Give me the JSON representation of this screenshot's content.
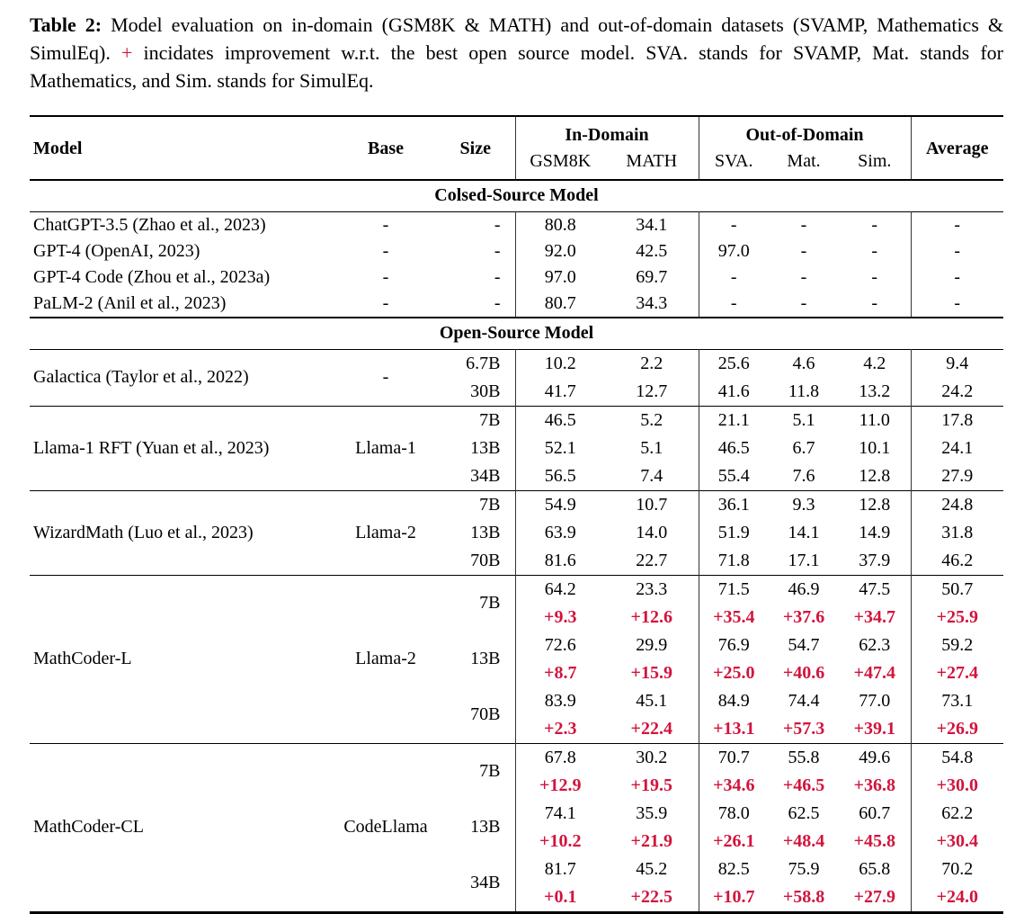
{
  "caption": {
    "label": "Table 2:",
    "text_before_plus": "Model evaluation on in-domain (GSM8K & MATH) and out-of-domain datasets (SVAMP, Mathematics & SimulEq).",
    "plus_sign": "+",
    "text_after_plus": "incidates improvement w.r.t. the best open source model. SVA. stands for SVAMP, Mat. stands for Mathematics, and Sim. stands for SimulEq."
  },
  "colors": {
    "delta_red": "#d2143c",
    "rule_black": "#000000"
  },
  "table": {
    "header": {
      "model": "Model",
      "base": "Base",
      "size": "Size",
      "in_domain": "In-Domain",
      "out_of_domain": "Out-of-Domain",
      "average": "Average",
      "sub_columns": [
        "GSM8K",
        "MATH",
        "SVA.",
        "Mat.",
        "Sim."
      ]
    },
    "sections": [
      {
        "title": "Colsed-Source Model",
        "type": "closed",
        "groups": [
          {
            "model": "ChatGPT-3.5 (Zhao et al., 2023)",
            "base": "-",
            "rows": [
              {
                "size": "-",
                "values": [
                  "80.8",
                  "34.1",
                  "-",
                  "-",
                  "-",
                  "-"
                ]
              }
            ]
          },
          {
            "model": "GPT-4 (OpenAI, 2023)",
            "base": "-",
            "rows": [
              {
                "size": "-",
                "values": [
                  "92.0",
                  "42.5",
                  "97.0",
                  "-",
                  "-",
                  "-"
                ]
              }
            ]
          },
          {
            "model": "GPT-4 Code (Zhou et al., 2023a)",
            "base": "-",
            "rows": [
              {
                "size": "-",
                "values": [
                  "97.0",
                  "69.7",
                  "-",
                  "-",
                  "-",
                  "-"
                ]
              }
            ]
          },
          {
            "model": "PaLM-2 (Anil et al., 2023)",
            "base": "-",
            "rows": [
              {
                "size": "-",
                "values": [
                  "80.7",
                  "34.3",
                  "-",
                  "-",
                  "-",
                  "-"
                ]
              }
            ]
          }
        ]
      },
      {
        "title": "Open-Source Model",
        "type": "open",
        "groups": [
          {
            "model": "Galactica (Taylor et al., 2022)",
            "base": "-",
            "rows": [
              {
                "size": "6.7B",
                "values": [
                  "10.2",
                  "2.2",
                  "25.6",
                  "4.6",
                  "4.2",
                  "9.4"
                ]
              },
              {
                "size": "30B",
                "values": [
                  "41.7",
                  "12.7",
                  "41.6",
                  "11.8",
                  "13.2",
                  "24.2"
                ]
              }
            ]
          },
          {
            "model": "Llama-1 RFT (Yuan et al., 2023)",
            "base": "Llama-1",
            "rows": [
              {
                "size": "7B",
                "values": [
                  "46.5",
                  "5.2",
                  "21.1",
                  "5.1",
                  "11.0",
                  "17.8"
                ]
              },
              {
                "size": "13B",
                "values": [
                  "52.1",
                  "5.1",
                  "46.5",
                  "6.7",
                  "10.1",
                  "24.1"
                ]
              },
              {
                "size": "34B",
                "values": [
                  "56.5",
                  "7.4",
                  "55.4",
                  "7.6",
                  "12.8",
                  "27.9"
                ]
              }
            ]
          },
          {
            "model": "WizardMath (Luo et al., 2023)",
            "base": "Llama-2",
            "rows": [
              {
                "size": "7B",
                "values": [
                  "54.9",
                  "10.7",
                  "36.1",
                  "9.3",
                  "12.8",
                  "24.8"
                ]
              },
              {
                "size": "13B",
                "values": [
                  "63.9",
                  "14.0",
                  "51.9",
                  "14.1",
                  "14.9",
                  "31.8"
                ]
              },
              {
                "size": "70B",
                "values": [
                  "81.6",
                  "22.7",
                  "71.8",
                  "17.1",
                  "37.9",
                  "46.2"
                ]
              }
            ]
          },
          {
            "model": "MathCoder-L",
            "base": "Llama-2",
            "rows": [
              {
                "size": "7B",
                "values": [
                  "64.2",
                  "23.3",
                  "71.5",
                  "46.9",
                  "47.5",
                  "50.7"
                ],
                "deltas": [
                  "+9.3",
                  "+12.6",
                  "+35.4",
                  "+37.6",
                  "+34.7",
                  "+25.9"
                ]
              },
              {
                "size": "13B",
                "values": [
                  "72.6",
                  "29.9",
                  "76.9",
                  "54.7",
                  "62.3",
                  "59.2"
                ],
                "deltas": [
                  "+8.7",
                  "+15.9",
                  "+25.0",
                  "+40.6",
                  "+47.4",
                  "+27.4"
                ]
              },
              {
                "size": "70B",
                "values": [
                  "83.9",
                  "45.1",
                  "84.9",
                  "74.4",
                  "77.0",
                  "73.1"
                ],
                "deltas": [
                  "+2.3",
                  "+22.4",
                  "+13.1",
                  "+57.3",
                  "+39.1",
                  "+26.9"
                ]
              }
            ]
          },
          {
            "model": "MathCoder-CL",
            "base": "CodeLlama",
            "rows": [
              {
                "size": "7B",
                "values": [
                  "67.8",
                  "30.2",
                  "70.7",
                  "55.8",
                  "49.6",
                  "54.8"
                ],
                "deltas": [
                  "+12.9",
                  "+19.5",
                  "+34.6",
                  "+46.5",
                  "+36.8",
                  "+30.0"
                ]
              },
              {
                "size": "13B",
                "values": [
                  "74.1",
                  "35.9",
                  "78.0",
                  "62.5",
                  "60.7",
                  "62.2"
                ],
                "deltas": [
                  "+10.2",
                  "+21.9",
                  "+26.1",
                  "+48.4",
                  "+45.8",
                  "+30.4"
                ]
              },
              {
                "size": "34B",
                "values": [
                  "81.7",
                  "45.2",
                  "82.5",
                  "75.9",
                  "65.8",
                  "70.2"
                ],
                "deltas": [
                  "+0.1",
                  "+22.5",
                  "+10.7",
                  "+58.8",
                  "+27.9",
                  "+24.0"
                ]
              }
            ]
          }
        ]
      }
    ]
  }
}
